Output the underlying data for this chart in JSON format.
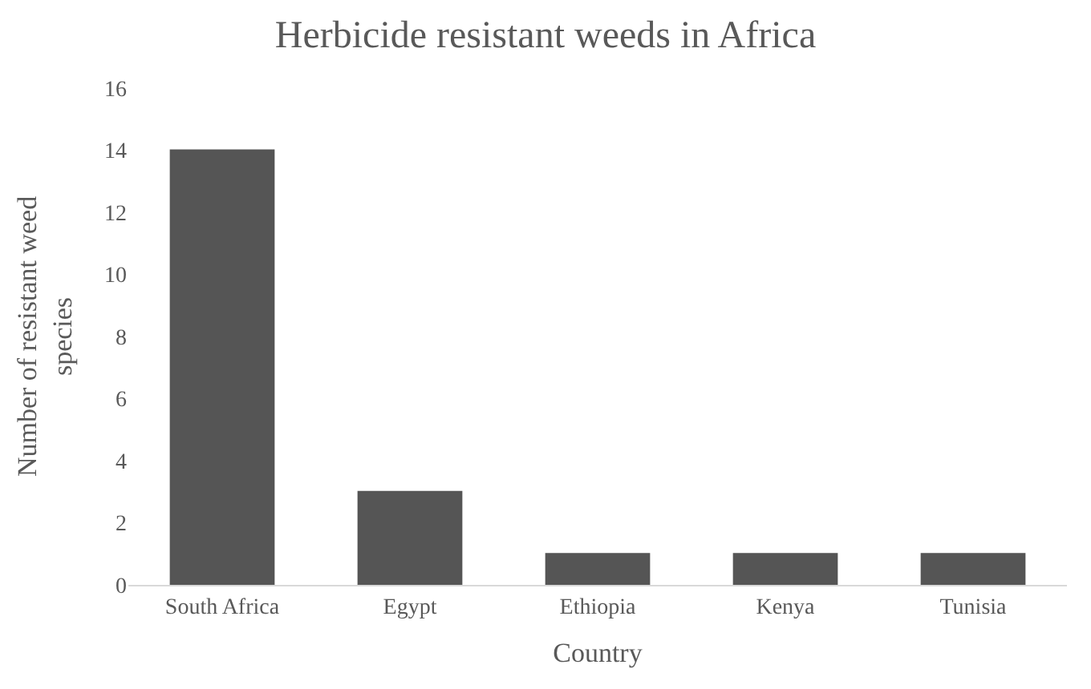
{
  "chart_data": {
    "type": "bar",
    "title": "Herbicide resistant weeds in Africa",
    "xlabel": "Country",
    "ylabel": "Number of resistant weed species",
    "categories": [
      "South Africa",
      "Egypt",
      "Ethiopia",
      "Kenya",
      "Tunisia"
    ],
    "values": [
      14,
      3,
      1,
      1,
      1
    ],
    "color": "#555555",
    "ylim": [
      0,
      16
    ],
    "yticks": [
      0,
      2,
      4,
      6,
      8,
      10,
      12,
      14,
      16
    ],
    "grid": false
  }
}
